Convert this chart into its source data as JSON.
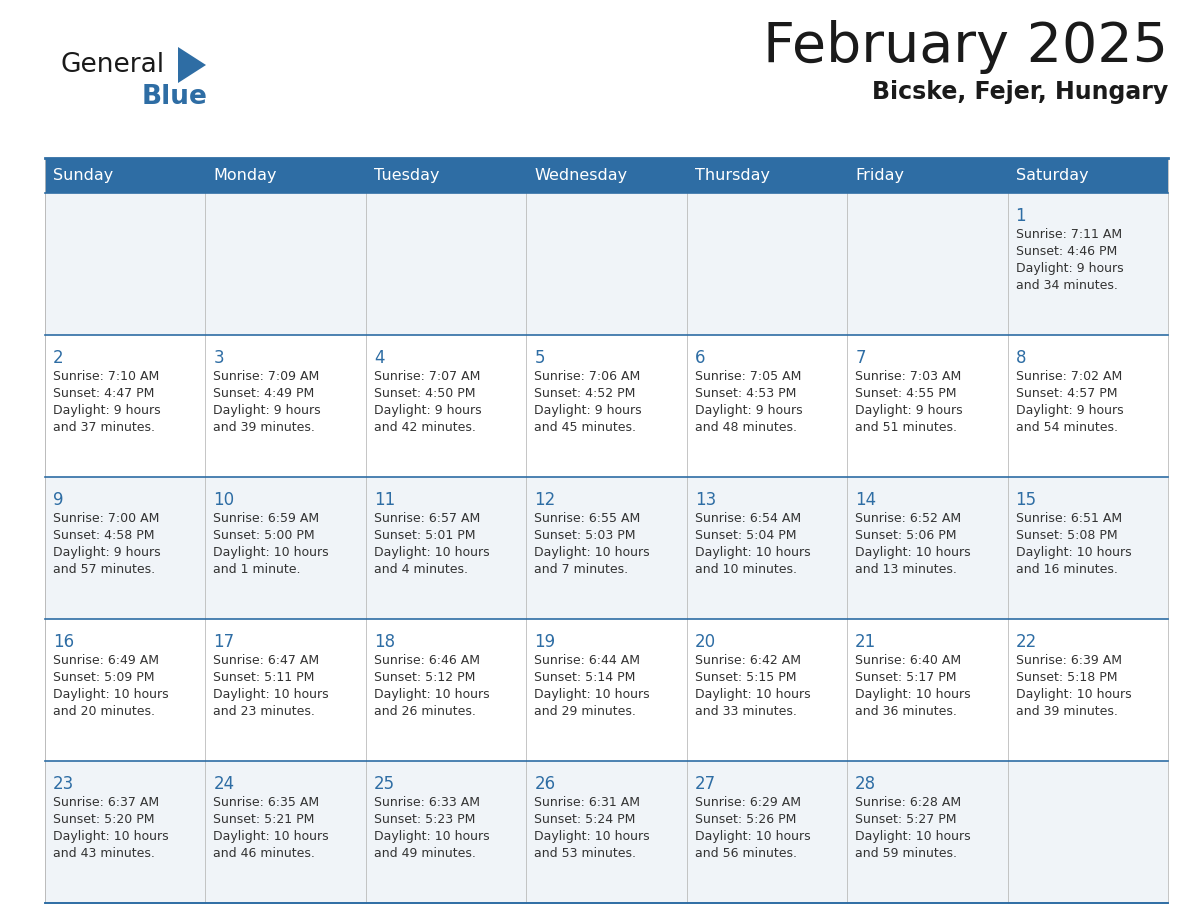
{
  "title": "February 2025",
  "subtitle": "Bicske, Fejer, Hungary",
  "header_bg": "#2E6DA4",
  "header_text_color": "#FFFFFF",
  "row_bg_odd": "#F0F4F8",
  "row_bg_even": "#FFFFFF",
  "border_color": "#2E6DA4",
  "cell_border_color": "#BBBBBB",
  "days_of_week": [
    "Sunday",
    "Monday",
    "Tuesday",
    "Wednesday",
    "Thursday",
    "Friday",
    "Saturday"
  ],
  "title_color": "#1a1a1a",
  "subtitle_color": "#1a1a1a",
  "day_number_color": "#2E6DA4",
  "info_text_color": "#333333",
  "logo_general_color": "#1a1a1a",
  "logo_blue_color": "#2E6DA4",
  "calendar_data": [
    [
      null,
      null,
      null,
      null,
      null,
      null,
      {
        "day": 1,
        "sunrise": "7:11 AM",
        "sunset": "4:46 PM",
        "daylight": "9 hours and 34 minutes."
      }
    ],
    [
      {
        "day": 2,
        "sunrise": "7:10 AM",
        "sunset": "4:47 PM",
        "daylight": "9 hours and 37 minutes."
      },
      {
        "day": 3,
        "sunrise": "7:09 AM",
        "sunset": "4:49 PM",
        "daylight": "9 hours and 39 minutes."
      },
      {
        "day": 4,
        "sunrise": "7:07 AM",
        "sunset": "4:50 PM",
        "daylight": "9 hours and 42 minutes."
      },
      {
        "day": 5,
        "sunrise": "7:06 AM",
        "sunset": "4:52 PM",
        "daylight": "9 hours and 45 minutes."
      },
      {
        "day": 6,
        "sunrise": "7:05 AM",
        "sunset": "4:53 PM",
        "daylight": "9 hours and 48 minutes."
      },
      {
        "day": 7,
        "sunrise": "7:03 AM",
        "sunset": "4:55 PM",
        "daylight": "9 hours and 51 minutes."
      },
      {
        "day": 8,
        "sunrise": "7:02 AM",
        "sunset": "4:57 PM",
        "daylight": "9 hours and 54 minutes."
      }
    ],
    [
      {
        "day": 9,
        "sunrise": "7:00 AM",
        "sunset": "4:58 PM",
        "daylight": "9 hours and 57 minutes."
      },
      {
        "day": 10,
        "sunrise": "6:59 AM",
        "sunset": "5:00 PM",
        "daylight": "10 hours and 1 minute."
      },
      {
        "day": 11,
        "sunrise": "6:57 AM",
        "sunset": "5:01 PM",
        "daylight": "10 hours and 4 minutes."
      },
      {
        "day": 12,
        "sunrise": "6:55 AM",
        "sunset": "5:03 PM",
        "daylight": "10 hours and 7 minutes."
      },
      {
        "day": 13,
        "sunrise": "6:54 AM",
        "sunset": "5:04 PM",
        "daylight": "10 hours and 10 minutes."
      },
      {
        "day": 14,
        "sunrise": "6:52 AM",
        "sunset": "5:06 PM",
        "daylight": "10 hours and 13 minutes."
      },
      {
        "day": 15,
        "sunrise": "6:51 AM",
        "sunset": "5:08 PM",
        "daylight": "10 hours and 16 minutes."
      }
    ],
    [
      {
        "day": 16,
        "sunrise": "6:49 AM",
        "sunset": "5:09 PM",
        "daylight": "10 hours and 20 minutes."
      },
      {
        "day": 17,
        "sunrise": "6:47 AM",
        "sunset": "5:11 PM",
        "daylight": "10 hours and 23 minutes."
      },
      {
        "day": 18,
        "sunrise": "6:46 AM",
        "sunset": "5:12 PM",
        "daylight": "10 hours and 26 minutes."
      },
      {
        "day": 19,
        "sunrise": "6:44 AM",
        "sunset": "5:14 PM",
        "daylight": "10 hours and 29 minutes."
      },
      {
        "day": 20,
        "sunrise": "6:42 AM",
        "sunset": "5:15 PM",
        "daylight": "10 hours and 33 minutes."
      },
      {
        "day": 21,
        "sunrise": "6:40 AM",
        "sunset": "5:17 PM",
        "daylight": "10 hours and 36 minutes."
      },
      {
        "day": 22,
        "sunrise": "6:39 AM",
        "sunset": "5:18 PM",
        "daylight": "10 hours and 39 minutes."
      }
    ],
    [
      {
        "day": 23,
        "sunrise": "6:37 AM",
        "sunset": "5:20 PM",
        "daylight": "10 hours and 43 minutes."
      },
      {
        "day": 24,
        "sunrise": "6:35 AM",
        "sunset": "5:21 PM",
        "daylight": "10 hours and 46 minutes."
      },
      {
        "day": 25,
        "sunrise": "6:33 AM",
        "sunset": "5:23 PM",
        "daylight": "10 hours and 49 minutes."
      },
      {
        "day": 26,
        "sunrise": "6:31 AM",
        "sunset": "5:24 PM",
        "daylight": "10 hours and 53 minutes."
      },
      {
        "day": 27,
        "sunrise": "6:29 AM",
        "sunset": "5:26 PM",
        "daylight": "10 hours and 56 minutes."
      },
      {
        "day": 28,
        "sunrise": "6:28 AM",
        "sunset": "5:27 PM",
        "daylight": "10 hours and 59 minutes."
      },
      null
    ]
  ]
}
